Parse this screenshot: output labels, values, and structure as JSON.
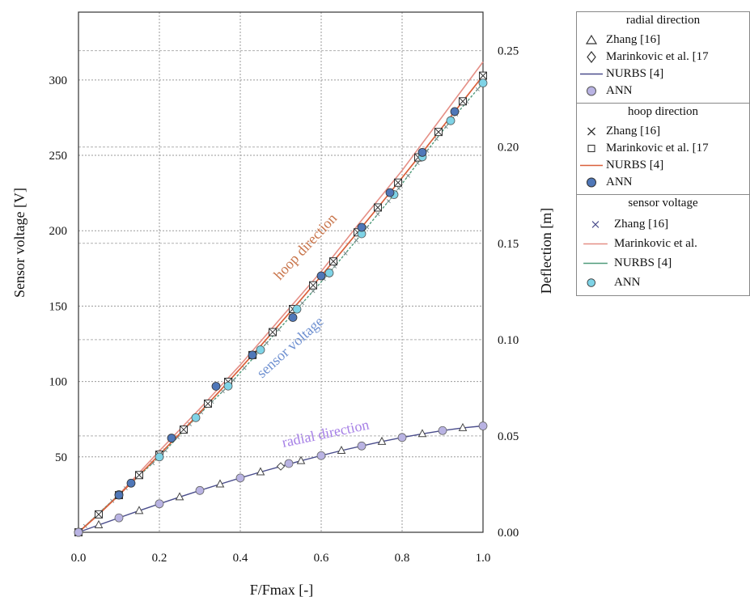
{
  "chart_data": {
    "type": "line",
    "title": "",
    "xlabel": "F/Fmax [-]",
    "ylabel_left": "Sensor voltage [V]",
    "ylabel_right": "Deflection [m]",
    "xlim": [
      0,
      1
    ],
    "ylim_left": [
      0,
      345
    ],
    "ylim_right": [
      0,
      0.27
    ],
    "x_ticks": [
      "0.0",
      "0.2",
      "0.4",
      "0.6",
      "0.8",
      "1.0"
    ],
    "y_left_ticks": [
      "50",
      "100",
      "150",
      "200",
      "250",
      "300"
    ],
    "y_right_ticks": [
      "0.00",
      "0.05",
      "0.10",
      "0.15",
      "0.20",
      "0.25"
    ],
    "grid": true,
    "annotations": {
      "hoop": "hoop direction",
      "sensor": "sensor voltage",
      "radial": "radial direction"
    },
    "series": {
      "hoop": {
        "color": "#d9603b",
        "x": [
          0,
          0.05,
          0.1,
          0.15,
          0.2,
          0.25,
          0.3,
          0.35,
          0.4,
          0.45,
          0.5,
          0.55,
          0.6,
          0.65,
          0.7,
          0.75,
          0.8,
          0.85,
          0.9,
          0.95,
          1.0
        ],
        "y": [
          0,
          0.0093,
          0.0193,
          0.0297,
          0.0403,
          0.0511,
          0.0622,
          0.0735,
          0.085,
          0.0967,
          0.1087,
          0.1208,
          0.1331,
          0.1456,
          0.1583,
          0.1711,
          0.1841,
          0.1972,
          0.2104,
          0.2237,
          0.237
        ]
      },
      "hoop_zhang": {
        "x": [
          0.0,
          0.05,
          0.1,
          0.15,
          0.2,
          0.26,
          0.32,
          0.37,
          0.43,
          0.48,
          0.53,
          0.58,
          0.63,
          0.69,
          0.74,
          0.79,
          0.84,
          0.89,
          0.95,
          1.0
        ],
        "y": [
          0.0,
          0.0093,
          0.0193,
          0.0297,
          0.0403,
          0.0533,
          0.0668,
          0.0781,
          0.092,
          0.1039,
          0.1159,
          0.1282,
          0.1406,
          0.1557,
          0.1686,
          0.1815,
          0.1946,
          0.2078,
          0.2237,
          0.237
        ]
      },
      "hoop_ann": {
        "x": [
          0.0,
          0.1,
          0.13,
          0.23,
          0.34,
          0.43,
          0.53,
          0.6,
          0.7,
          0.77,
          0.85,
          0.93
        ],
        "y": [
          0.0,
          0.0193,
          0.0255,
          0.0489,
          0.0758,
          0.092,
          0.1115,
          0.1331,
          0.1583,
          0.1763,
          0.1972,
          0.2184
        ]
      },
      "voltage": {
        "color": "#e58f86",
        "x": [
          0,
          0.1,
          0.2,
          0.3,
          0.4,
          0.5,
          0.6,
          0.7,
          0.8,
          0.9,
          1.0
        ],
        "y": [
          0,
          25,
          54,
          82,
          111,
          142,
          173,
          207,
          240,
          276,
          312
        ]
      },
      "voltage_ann": {
        "x": [
          0.0,
          0.1,
          0.2,
          0.29,
          0.37,
          0.45,
          0.54,
          0.62,
          0.7,
          0.78,
          0.85,
          0.92,
          1.0
        ],
        "y": [
          0,
          25,
          50,
          76,
          97,
          121,
          148,
          172,
          198,
          224,
          249,
          273,
          298
        ]
      },
      "radial": {
        "color": "#4a4d8c",
        "x": [
          0,
          0.05,
          0.1,
          0.15,
          0.2,
          0.25,
          0.3,
          0.35,
          0.4,
          0.45,
          0.5,
          0.55,
          0.6,
          0.65,
          0.7,
          0.75,
          0.8,
          0.85,
          0.9,
          0.95,
          1.0
        ],
        "y": [
          0,
          0.0038,
          0.0075,
          0.0112,
          0.0148,
          0.0183,
          0.0217,
          0.025,
          0.0282,
          0.0313,
          0.0342,
          0.0371,
          0.0398,
          0.0424,
          0.0448,
          0.0471,
          0.0492,
          0.0511,
          0.0528,
          0.0542,
          0.0552
        ]
      },
      "radial_ann": {
        "x": [
          0.0,
          0.1,
          0.2,
          0.3,
          0.4,
          0.52,
          0.6,
          0.7,
          0.8,
          0.9,
          1.0
        ],
        "y": [
          0.0,
          0.0075,
          0.0148,
          0.0217,
          0.0282,
          0.0357,
          0.0398,
          0.0448,
          0.0492,
          0.0528,
          0.0552
        ]
      }
    }
  },
  "legend": {
    "radial": {
      "header": "radial direction",
      "items": [
        "Zhang [16]",
        "Marinkovic et al. [17",
        "NURBS [4]",
        "ANN"
      ]
    },
    "hoop": {
      "header": "hoop direction",
      "items": [
        "Zhang [16]",
        "Marinkovic et al. [17",
        "NURBS [4]",
        "ANN"
      ]
    },
    "voltage": {
      "header": "sensor voltage",
      "items": [
        "Zhang [16]",
        "Marinkovic et al.",
        "NURBS [4]",
        "ANN"
      ]
    },
    "colors": {
      "radial_line": "#4a4d8c",
      "radial_ann": "#b9b3e3",
      "hoop_line": "#d9603b",
      "hoop_ann": "#4f77b8",
      "voltage_x": "#4a4d8c",
      "voltage_marinkovic": "#e58f86",
      "voltage_nurbs": "#4f9a7a",
      "voltage_ann": "#7fd3e6",
      "annotation_hoop": "#c8744a",
      "annotation_sensor": "#6d8fd0",
      "annotation_radial": "#a680e6"
    }
  }
}
